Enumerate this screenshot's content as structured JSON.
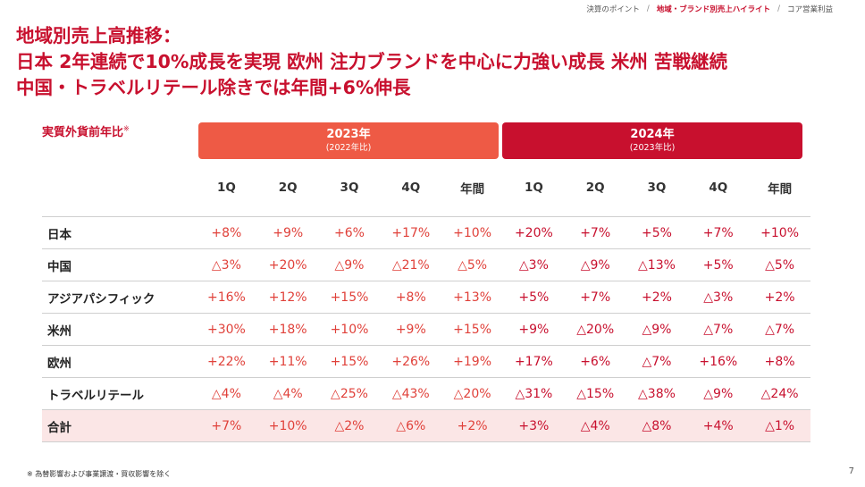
{
  "breadcrumb": [
    "決算のポイント",
    "地域・ブランド別売上ハイライト",
    "コア営業利益"
  ],
  "breadcrumb_sep": "/",
  "title_lines": [
    "地域別売上高推移：",
    "日本 2年連続で10%成長を実現 欧州 注力ブランドを中心に力強い成長 米州 苦戦継続",
    "中国・トラベルリテール除きでは年間+6%伸長"
  ],
  "basis_label": "実質外貨前年比",
  "basis_mark": "※",
  "years": [
    {
      "label": "2023年",
      "compare": "(2022年比)",
      "color": "#ee5a45"
    },
    {
      "label": "2024年",
      "compare": "(2023年比)",
      "color": "#c8102e"
    }
  ],
  "columns": [
    "1Q",
    "2Q",
    "3Q",
    "4Q",
    "年間",
    "1Q",
    "2Q",
    "3Q",
    "4Q",
    "年間"
  ],
  "rows": [
    {
      "region": "日本",
      "values": [
        "+8%",
        "+9%",
        "+6%",
        "+17%",
        "+10%",
        "+20%",
        "+7%",
        "+5%",
        "+7%",
        "+10%"
      ]
    },
    {
      "region": "中国",
      "values": [
        "△3%",
        "+20%",
        "△9%",
        "△21%",
        "△5%",
        "△3%",
        "△9%",
        "△13%",
        "+5%",
        "△5%"
      ]
    },
    {
      "region": "アジアパシフィック",
      "values": [
        "+16%",
        "+12%",
        "+15%",
        "+8%",
        "+13%",
        "+5%",
        "+7%",
        "+2%",
        "△3%",
        "+2%"
      ]
    },
    {
      "region": "米州",
      "values": [
        "+30%",
        "+18%",
        "+10%",
        "+9%",
        "+15%",
        "+9%",
        "△20%",
        "△9%",
        "△7%",
        "△7%"
      ]
    },
    {
      "region": "欧州",
      "values": [
        "+22%",
        "+11%",
        "+15%",
        "+26%",
        "+19%",
        "+17%",
        "+6%",
        "△7%",
        "+16%",
        "+8%"
      ]
    },
    {
      "region": "トラベルリテール",
      "values": [
        "△4%",
        "△4%",
        "△25%",
        "△43%",
        "△20%",
        "△31%",
        "△15%",
        "△38%",
        "△9%",
        "△24%"
      ]
    },
    {
      "region": "合計",
      "values": [
        "+7%",
        "+10%",
        "△2%",
        "△6%",
        "+2%",
        "+3%",
        "△4%",
        "△8%",
        "+4%",
        "△1%"
      ]
    }
  ],
  "footnote": "※ 為替影響および事業譲渡・買収影響を除く",
  "page_number": "7"
}
